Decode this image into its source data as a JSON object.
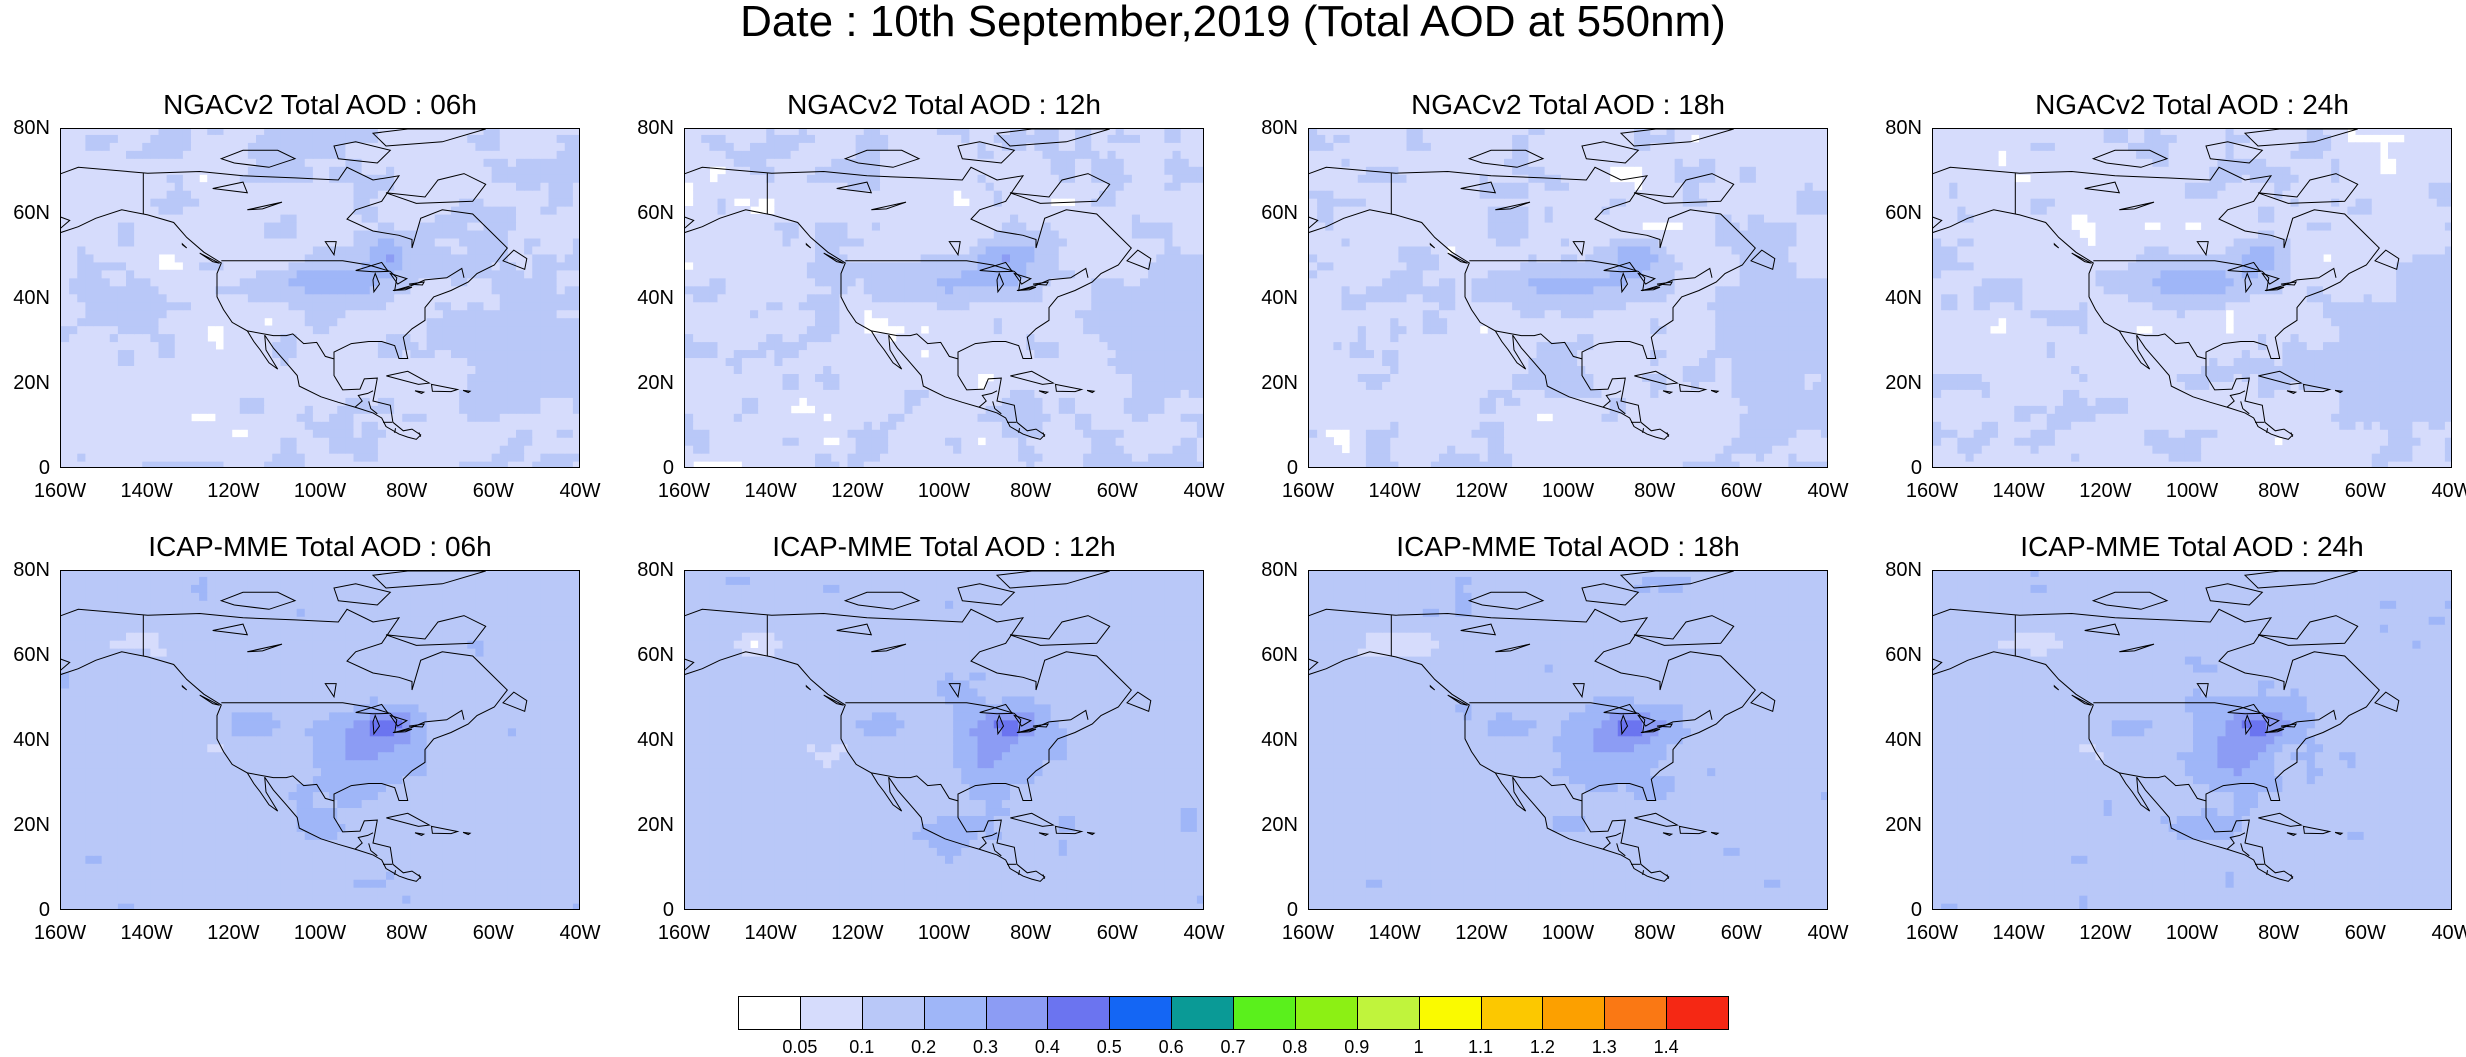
{
  "title": "Date : 10th September,2019 (Total AOD at 550nm)",
  "map": {
    "lon_range": [
      -160,
      -40
    ],
    "lat_range": [
      0,
      80
    ],
    "y_ticks": [
      "80N",
      "60N",
      "40N",
      "20N",
      "0"
    ],
    "x_ticks": [
      "160W",
      "140W",
      "120W",
      "100W",
      "80W",
      "60W",
      "40W"
    ]
  },
  "panels": [
    {
      "model": "NGACv2",
      "title": "NGACv2 Total AOD : 06h",
      "hour": "06h"
    },
    {
      "model": "NGACv2",
      "title": "NGACv2 Total AOD : 12h",
      "hour": "12h"
    },
    {
      "model": "NGACv2",
      "title": "NGACv2 Total AOD : 18h",
      "hour": "18h"
    },
    {
      "model": "NGACv2",
      "title": "NGACv2 Total AOD : 24h",
      "hour": "24h"
    },
    {
      "model": "ICAP-MME",
      "title": "ICAP-MME Total AOD : 06h",
      "hour": "06h"
    },
    {
      "model": "ICAP-MME",
      "title": "ICAP-MME Total AOD : 12h",
      "hour": "12h"
    },
    {
      "model": "ICAP-MME",
      "title": "ICAP-MME Total AOD : 18h",
      "hour": "18h"
    },
    {
      "model": "ICAP-MME",
      "title": "ICAP-MME Total AOD : 24h",
      "hour": "24h"
    }
  ],
  "colorbar": {
    "labels": [
      "0.05",
      "0.1",
      "0.2",
      "0.3",
      "0.4",
      "0.5",
      "0.6",
      "0.7",
      "0.8",
      "0.9",
      "1",
      "1.1",
      "1.2",
      "1.3",
      "1.4"
    ],
    "colors": [
      "#ffffff",
      "#d6dcfc",
      "#b9c8f8",
      "#9fb6f8",
      "#8c9cf4",
      "#6b74f0",
      "#1466f4",
      "#0a9a96",
      "#5af01c",
      "#8cf014",
      "#c0f43c",
      "#fafa00",
      "#fcc800",
      "#fca000",
      "#fa7814",
      "#f52814"
    ]
  }
}
